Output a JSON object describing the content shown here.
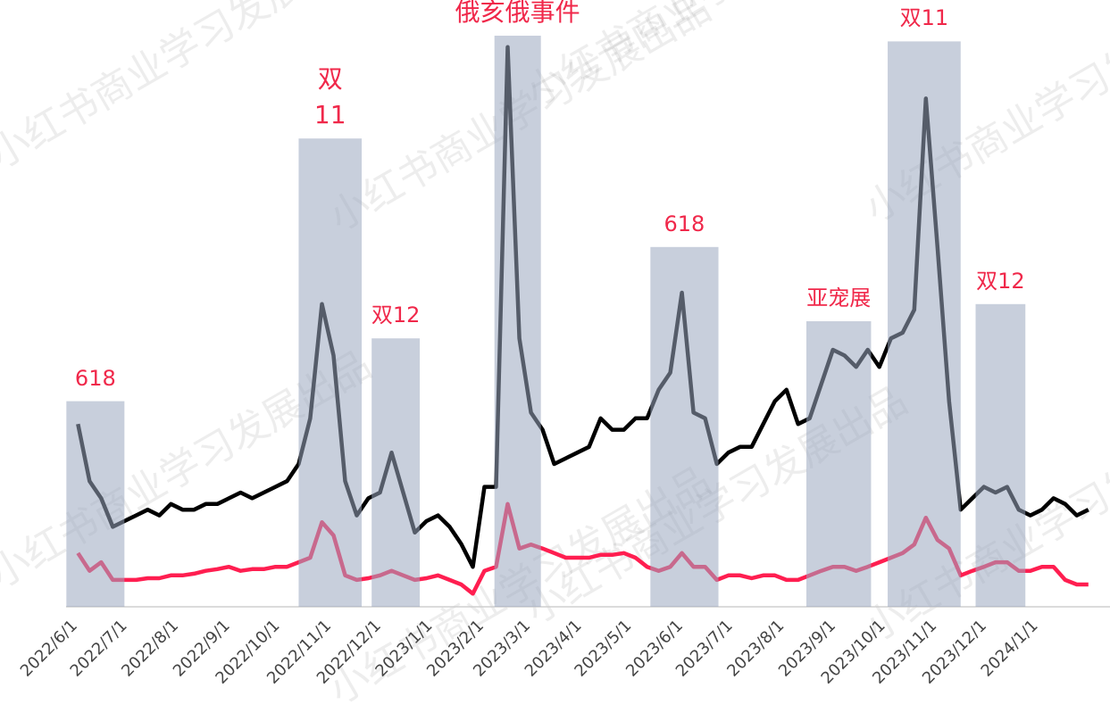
{
  "chart_data": {
    "type": "line",
    "watermark": "小红书商业学习发展出品",
    "x": [
      "2022/6/1",
      "2022/6/8",
      "2022/6/15",
      "2022/6/22",
      "2022/6/29",
      "2022/7/6",
      "2022/7/13",
      "2022/7/20",
      "2022/7/27",
      "2022/8/3",
      "2022/8/10",
      "2022/8/17",
      "2022/8/24",
      "2022/8/31",
      "2022/9/7",
      "2022/9/14",
      "2022/9/21",
      "2022/9/28",
      "2022/10/5",
      "2022/10/12",
      "2022/10/19",
      "2022/10/26",
      "2022/11/2",
      "2022/11/9",
      "2022/11/16",
      "2022/11/23",
      "2022/11/30",
      "2022/12/7",
      "2022/12/14",
      "2022/12/21",
      "2022/12/28",
      "2023/1/4",
      "2023/1/11",
      "2023/1/18",
      "2023/1/25",
      "2023/2/1",
      "2023/2/8",
      "2023/2/15",
      "2023/2/22",
      "2023/3/1",
      "2023/3/8",
      "2023/3/15",
      "2023/3/22",
      "2023/3/29",
      "2023/4/5",
      "2023/4/12",
      "2023/4/19",
      "2023/4/26",
      "2023/5/3",
      "2023/5/10",
      "2023/5/17",
      "2023/5/24",
      "2023/5/31",
      "2023/6/7",
      "2023/6/14",
      "2023/6/21",
      "2023/6/28",
      "2023/7/5",
      "2023/7/12",
      "2023/7/19",
      "2023/7/26",
      "2023/8/2",
      "2023/8/9",
      "2023/8/16",
      "2023/8/23",
      "2023/8/30",
      "2023/9/6",
      "2023/9/13",
      "2023/9/20",
      "2023/9/27",
      "2023/10/4",
      "2023/10/11",
      "2023/10/18",
      "2023/10/25",
      "2023/11/1",
      "2023/11/8",
      "2023/11/15",
      "2023/11/22",
      "2023/11/29",
      "2023/12/6",
      "2023/12/13",
      "2023/12/20",
      "2023/12/27",
      "2024/1/3",
      "2024/1/10",
      "2024/1/17",
      "2024/1/24",
      "2024/1/31"
    ],
    "series": [
      {
        "color": "#000000",
        "values": [
          32,
          22,
          19,
          14,
          15,
          16,
          17,
          16,
          18,
          17,
          17,
          18,
          18,
          19,
          20,
          19,
          20,
          21,
          22,
          25,
          33,
          53,
          44,
          22,
          16,
          19,
          20,
          27,
          20,
          13,
          15,
          16,
          14,
          11,
          7,
          21,
          21,
          98,
          47,
          34,
          31,
          25,
          26,
          27,
          28,
          33,
          31,
          31,
          33,
          33,
          38,
          41,
          55,
          34,
          33,
          25,
          27,
          28,
          28,
          32,
          36,
          38,
          32,
          33,
          39,
          45,
          44,
          42,
          45,
          42,
          47,
          48,
          52,
          89,
          63,
          36,
          17,
          19,
          21,
          20,
          21,
          17,
          16,
          17,
          19,
          18,
          16,
          17
        ]
      },
      {
        "color": "#ff1e50",
        "values": [
          9.4,
          6.3,
          7.8,
          4.7,
          4.7,
          4.7,
          5.0,
          5.0,
          5.5,
          5.5,
          5.8,
          6.3,
          6.6,
          7.0,
          6.3,
          6.6,
          6.6,
          7.0,
          7.0,
          7.8,
          8.6,
          14.8,
          12.5,
          5.5,
          4.7,
          5.0,
          5.5,
          6.3,
          5.5,
          4.7,
          5.0,
          5.5,
          4.7,
          3.9,
          2.3,
          6.3,
          7.0,
          18.0,
          10.2,
          10.9,
          10.2,
          9.4,
          8.6,
          8.6,
          8.6,
          9.1,
          9.1,
          9.4,
          8.6,
          7.0,
          6.3,
          7.0,
          9.4,
          7.0,
          7.0,
          4.7,
          5.5,
          5.5,
          5.0,
          5.5,
          5.5,
          4.7,
          4.7,
          5.5,
          6.3,
          7.0,
          7.0,
          6.3,
          7.0,
          7.8,
          8.6,
          9.4,
          10.9,
          15.6,
          11.7,
          10.2,
          5.5,
          6.3,
          7.0,
          7.8,
          7.8,
          6.3,
          6.3,
          7.0,
          7.0,
          4.7,
          3.9,
          3.9
        ]
      }
    ],
    "bands": [
      {
        "start": "2022/5/25",
        "end": "2022/6/29",
        "top": 36,
        "label": "618"
      },
      {
        "start": "2022/10/12",
        "end": "2022/11/19",
        "top": 82,
        "label": "双\n11"
      },
      {
        "start": "2022/11/25",
        "end": "2022/12/24",
        "top": 47,
        "label": "双12"
      },
      {
        "start": "2023/2/7",
        "end": "2023/3/7",
        "top": 100,
        "label": "俄亥俄事件"
      },
      {
        "start": "2023/5/12",
        "end": "2023/6/22",
        "top": 63,
        "label": "618"
      },
      {
        "start": "2023/8/14",
        "end": "2023/9/22",
        "top": 50,
        "label": "亚宠展"
      },
      {
        "start": "2023/10/2",
        "end": "2023/11/15",
        "top": 99,
        "label": "双11"
      },
      {
        "start": "2023/11/24",
        "end": "2023/12/24",
        "top": 53,
        "label": "双12"
      }
    ],
    "band_color": "#9aa8bf",
    "xlim": [
      "2022/4/15",
      "2024/2/13"
    ],
    "xticks": [
      "2022/6/1",
      "2022/7/1",
      "2022/8/1",
      "2022/9/1",
      "2022/10/1",
      "2022/11/1",
      "2022/12/1",
      "2023/1/1",
      "2023/2/1",
      "2023/3/1",
      "2023/4/1",
      "2023/5/1",
      "2023/6/1",
      "2023/7/1",
      "2023/8/1",
      "2023/9/1",
      "2023/10/1",
      "2023/11/1",
      "2023/12/1",
      "2024/1/1"
    ],
    "ylim": [
      0,
      100
    ]
  }
}
